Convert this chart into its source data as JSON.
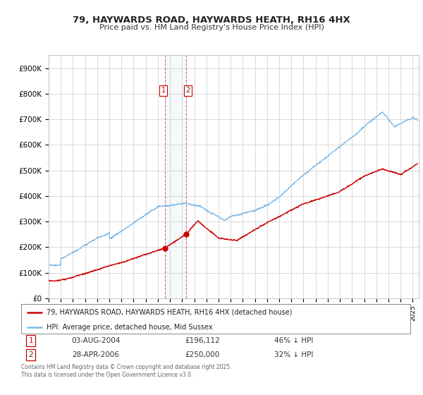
{
  "title_line1": "79, HAYWARDS ROAD, HAYWARDS HEATH, RH16 4HX",
  "title_line2": "Price paid vs. HM Land Registry's House Price Index (HPI)",
  "ylim": [
    0,
    950000
  ],
  "xlim_start": 1995.0,
  "xlim_end": 2025.5,
  "hpi_color": "#7ab8e8",
  "price_color": "#cc0000",
  "t1_x": 2004.583,
  "t1_y": 196112,
  "t2_x": 2006.333,
  "t2_y": 250000,
  "transaction1_date": "03-AUG-2004",
  "transaction1_price": "£196,112",
  "transaction1_hpi": "46% ↓ HPI",
  "transaction2_date": "28-APR-2006",
  "transaction2_price": "£250,000",
  "transaction2_hpi": "32% ↓ HPI",
  "legend_label1": "79, HAYWARDS ROAD, HAYWARDS HEATH, RH16 4HX (detached house)",
  "legend_label2": "HPI: Average price, detached house, Mid Sussex",
  "footnote": "Contains HM Land Registry data © Crown copyright and database right 2025.\nThis data is licensed under the Open Government Licence v3.0.",
  "background_color": "#ffffff",
  "grid_color": "#cccccc",
  "yticks": [
    0,
    100000,
    200000,
    300000,
    400000,
    500000,
    600000,
    700000,
    800000,
    900000
  ],
  "ytick_labels": [
    "£0",
    "£100K",
    "£200K",
    "£300K",
    "£400K",
    "£500K",
    "£600K",
    "£700K",
    "£800K",
    "£900K"
  ]
}
